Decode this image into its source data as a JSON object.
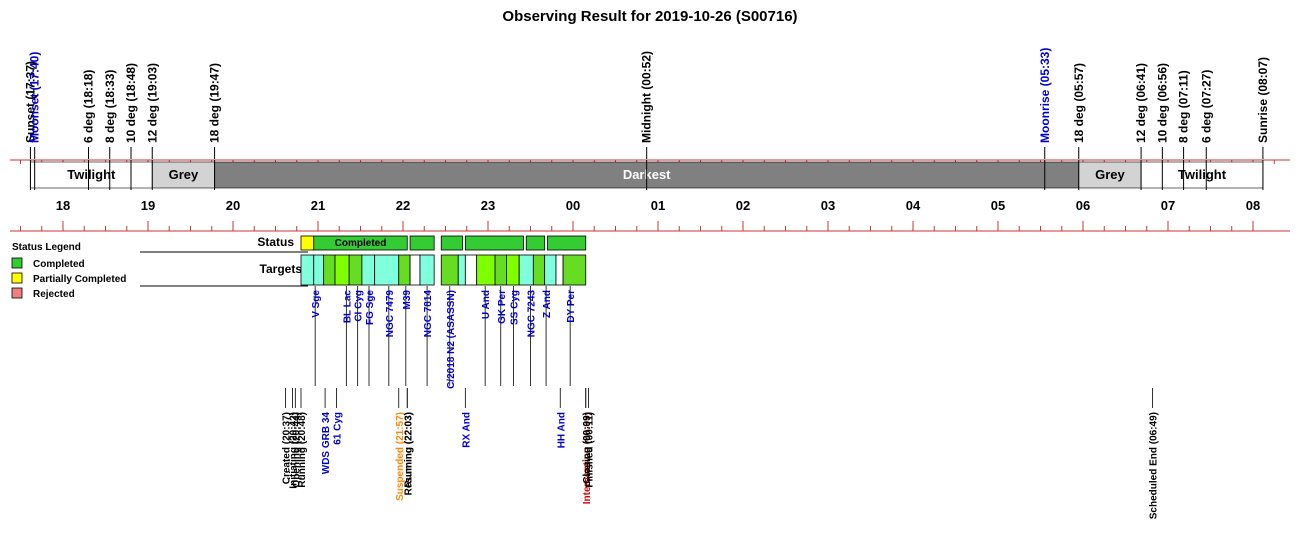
{
  "chart_data": {
    "type": "timeline",
    "title": "Observing Result for 2019-10-26 (S00716)",
    "hour_ticks": [
      "18",
      "19",
      "20",
      "21",
      "22",
      "23",
      "00",
      "01",
      "02",
      "03",
      "04",
      "05",
      "06",
      "07",
      "08"
    ],
    "twilight_markers": [
      {
        "label": "Sunset (17:37)",
        "t": "17:37",
        "color": "#000000"
      },
      {
        "label": "Moonset (17:40)",
        "t": "17:40",
        "color": "#0000cc"
      },
      {
        "label": "6 deg (18:18)",
        "t": "18:18",
        "color": "#000000"
      },
      {
        "label": "8 deg (18:33)",
        "t": "18:33",
        "color": "#000000"
      },
      {
        "label": "10 deg (18:48)",
        "t": "18:48",
        "color": "#000000"
      },
      {
        "label": "12 deg (19:03)",
        "t": "19:03",
        "color": "#000000"
      },
      {
        "label": "18 deg (19:47)",
        "t": "19:47",
        "color": "#000000"
      },
      {
        "label": "Midnight (00:52)",
        "t": "00:52",
        "color": "#000000"
      },
      {
        "label": "Moonrise (05:33)",
        "t": "05:33",
        "color": "#0000cc"
      },
      {
        "label": "18 deg (05:57)",
        "t": "05:57",
        "color": "#000000"
      },
      {
        "label": "12 deg (06:41)",
        "t": "06:41",
        "color": "#000000"
      },
      {
        "label": "10 deg (06:56)",
        "t": "06:56",
        "color": "#000000"
      },
      {
        "label": "8 deg (07:11)",
        "t": "07:11",
        "color": "#000000"
      },
      {
        "label": "6 deg (07:27)",
        "t": "07:27",
        "color": "#000000"
      },
      {
        "label": "Sunrise (08:07)",
        "t": "08:07",
        "color": "#000000"
      }
    ],
    "sky_bands": [
      {
        "label": "Twilight",
        "start": "17:37",
        "end": "19:03",
        "fill": "#ffffff",
        "text_color": "#000000"
      },
      {
        "label": "Grey",
        "start": "19:03",
        "end": "19:47",
        "fill": "#d3d3d3",
        "text_color": "#000000"
      },
      {
        "label": "Darkest",
        "start": "19:47",
        "end": "05:57",
        "fill": "#808080",
        "text_color": "#ffffff"
      },
      {
        "label": "Grey",
        "start": "05:57",
        "end": "06:41",
        "fill": "#d3d3d3",
        "text_color": "#000000"
      },
      {
        "label": "Twilight",
        "start": "06:41",
        "end": "08:07",
        "fill": "#ffffff",
        "text_color": "#000000"
      }
    ],
    "legend": {
      "title": "Status Legend",
      "items": [
        {
          "label": "Completed",
          "color": "#33cc33"
        },
        {
          "label": "Partially Completed",
          "color": "#ffff00"
        },
        {
          "label": "Rejected",
          "color": "#f08080"
        }
      ]
    },
    "rows": {
      "status_label": "Status",
      "targets_label": "Targets"
    },
    "status_segments": [
      {
        "start": "20:48",
        "end": "20:57",
        "status": "Partially Completed",
        "label": ""
      },
      {
        "start": "20:57",
        "end": "22:03",
        "status": "Completed",
        "label": "Completed"
      },
      {
        "start": "22:05",
        "end": "22:22",
        "status": "Completed",
        "label": ""
      },
      {
        "start": "22:27",
        "end": "22:42",
        "status": "Completed",
        "label": ""
      },
      {
        "start": "22:44",
        "end": "23:25",
        "status": "Completed",
        "label": ""
      },
      {
        "start": "23:27",
        "end": "23:40",
        "status": "Completed",
        "label": ""
      },
      {
        "start": "23:42",
        "end": "00:09",
        "status": "Completed",
        "label": ""
      }
    ],
    "target_segments": [
      {
        "start": "20:48",
        "end": "20:57",
        "color": "#80ffdd"
      },
      {
        "start": "20:57",
        "end": "21:04",
        "color": "#80ffdd"
      },
      {
        "start": "21:04",
        "end": "21:12",
        "color": "#66dd22"
      },
      {
        "start": "21:12",
        "end": "21:22",
        "color": "#80ff00"
      },
      {
        "start": "21:22",
        "end": "21:31",
        "color": "#66dd22"
      },
      {
        "start": "21:31",
        "end": "21:40",
        "color": "#80ffdd"
      },
      {
        "start": "21:40",
        "end": "21:57",
        "color": "#80ffdd"
      },
      {
        "start": "21:57",
        "end": "22:05",
        "color": "#66dd22"
      },
      {
        "start": "22:05",
        "end": "22:12",
        "color": "#ffffff"
      },
      {
        "start": "22:12",
        "end": "22:22",
        "color": "#80ffdd"
      },
      {
        "start": "22:27",
        "end": "22:39",
        "color": "#66dd22"
      },
      {
        "start": "22:39",
        "end": "22:44",
        "color": "#80ffdd"
      },
      {
        "start": "22:44",
        "end": "22:52",
        "color": "#ffffff"
      },
      {
        "start": "22:52",
        "end": "23:05",
        "color": "#80ff00"
      },
      {
        "start": "23:05",
        "end": "23:13",
        "color": "#66dd22"
      },
      {
        "start": "23:13",
        "end": "23:22",
        "color": "#80ff00"
      },
      {
        "start": "23:22",
        "end": "23:32",
        "color": "#80ffdd"
      },
      {
        "start": "23:32",
        "end": "23:40",
        "color": "#66dd22"
      },
      {
        "start": "23:40",
        "end": "23:48",
        "color": "#80ffdd"
      },
      {
        "start": "23:48",
        "end": "23:53",
        "color": "#ffffff"
      },
      {
        "start": "23:53",
        "end": "00:09",
        "color": "#66dd22"
      }
    ],
    "target_labels": [
      {
        "label": "V Sge",
        "t": "20:58",
        "color": "#0000cc"
      },
      {
        "label": "BL Lac",
        "t": "21:20",
        "color": "#0000cc"
      },
      {
        "label": "CI Cyg",
        "t": "21:28",
        "color": "#0000cc"
      },
      {
        "label": "FG Sge",
        "t": "21:36",
        "color": "#0000cc"
      },
      {
        "label": "NGC 7479",
        "t": "21:50",
        "color": "#0000cc"
      },
      {
        "label": "M39",
        "t": "22:02",
        "color": "#0000cc"
      },
      {
        "label": "NGC 7814",
        "t": "22:17",
        "color": "#0000cc"
      },
      {
        "label": "C/2018 N2 (ASASSN)",
        "t": "22:33",
        "color": "#0000cc"
      },
      {
        "label": "U And",
        "t": "22:58",
        "color": "#0000cc"
      },
      {
        "label": "GK Per",
        "t": "23:09",
        "color": "#0000cc"
      },
      {
        "label": "SS Cyg",
        "t": "23:18",
        "color": "#0000cc"
      },
      {
        "label": "NGC 7243",
        "t": "23:30",
        "color": "#0000cc"
      },
      {
        "label": "Z And",
        "t": "23:41",
        "color": "#0000cc"
      },
      {
        "label": "DY Per",
        "t": "23:58",
        "color": "#0000cc"
      }
    ],
    "event_labels": [
      {
        "label": "Created (20:37)",
        "t": "20:37",
        "color": "#000000"
      },
      {
        "label": "Initiating (20:42)",
        "t": "20:42",
        "color": "#000000"
      },
      {
        "label": "Opening (20:44)",
        "t": "20:44",
        "color": "#000000"
      },
      {
        "label": "Running (20:48)",
        "t": "20:48",
        "color": "#000000"
      },
      {
        "label": "WDS GRB 34",
        "t": "21:05",
        "color": "#0000cc"
      },
      {
        "label": "61 Cyg",
        "t": "21:13",
        "color": "#0000cc"
      },
      {
        "label": "Suspended (21:57)",
        "t": "21:57",
        "color": "#ff8800"
      },
      {
        "label": "Resuming (22:03)",
        "t": "22:03",
        "color": "#000000"
      },
      {
        "label": "Running (22:03)",
        "t": "22:03",
        "color": "#000000"
      },
      {
        "label": "RX And",
        "t": "22:44",
        "color": "#0000cc"
      },
      {
        "label": "HH And",
        "t": "23:51",
        "color": "#0000cc"
      },
      {
        "label": "Intervention (00:09)",
        "t": "00:09",
        "color": "#dd0000"
      },
      {
        "label": "Closing (00:09)",
        "t": "00:09",
        "color": "#000000"
      },
      {
        "label": "Finished (00:11)",
        "t": "00:11",
        "color": "#000000"
      },
      {
        "label": "Scheduled End (06:49)",
        "t": "06:49",
        "color": "#000000"
      }
    ]
  }
}
